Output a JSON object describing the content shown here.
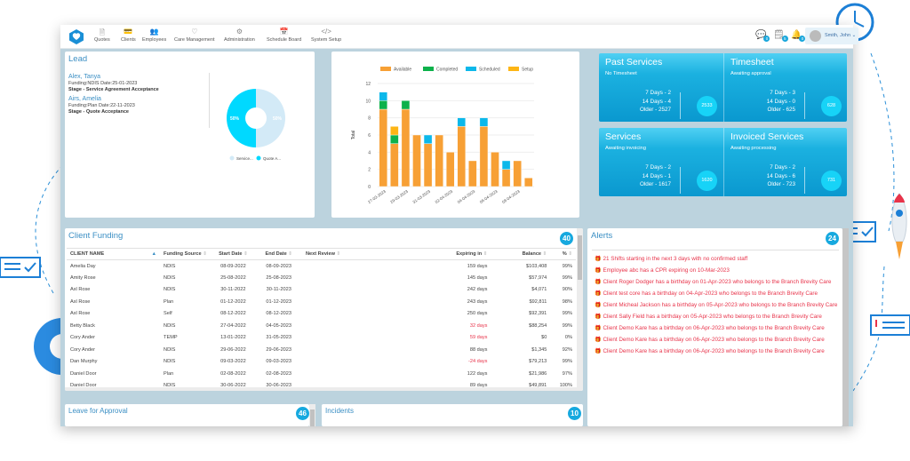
{
  "nav": {
    "items": [
      {
        "label": "Quotes",
        "icon": "file-icon"
      },
      {
        "label": "Clients",
        "icon": "id-card-icon"
      },
      {
        "label": "Employees",
        "icon": "people-icon"
      },
      {
        "label": "Care Management",
        "icon": "heart-icon"
      },
      {
        "label": "Administration",
        "icon": "cogs-icon"
      },
      {
        "label": "Schedule Board",
        "icon": "calendar-icon"
      },
      {
        "label": "System Setup",
        "icon": "code-icon"
      }
    ],
    "badges": [
      "0",
      "5",
      "0"
    ],
    "user": "Smith, John"
  },
  "lead": {
    "title": "Lead",
    "entries": [
      {
        "name": "Alex, Tanya",
        "sub": "Funding:NDIS Date:25-01-2023",
        "stage": "Stage - Service Agreement Acceptance"
      },
      {
        "name": "Airs, Amelia",
        "sub": "Funding:Plan Date:22-11-2023",
        "stage": "Stage - Quote Acceptance"
      }
    ],
    "pie": {
      "slices": [
        {
          "label": "Service...",
          "value": 50,
          "text": "50%",
          "color": "#d3eaf7"
        },
        {
          "label": "Quote A...",
          "value": 50,
          "text": "50%",
          "color": "#00d9ff"
        }
      ]
    }
  },
  "chart_data": {
    "type": "bar",
    "stacked": true,
    "ylabel": "Total",
    "ylim": [
      0,
      12
    ],
    "yticks": [
      0,
      2,
      4,
      6,
      8,
      10,
      12
    ],
    "categories": [
      "27-03-2023",
      "28-03-2023",
      "29-03-2023",
      "30-03-2023",
      "31-03-2023",
      "01-04-2023",
      "02-04-2023",
      "03-04-2023",
      "04-04-2023",
      "05-04-2023",
      "06-04-2023",
      "07-04-2023",
      "08-04-2023",
      "09-04-2023"
    ],
    "xtick_labels": [
      "27-03-2023",
      "29-03-2023",
      "31-03-2023",
      "02-04-2023",
      "04-04-2023",
      "06-04-2023",
      "08-04-2023"
    ],
    "legend": "top",
    "series": [
      {
        "name": "Available",
        "color": "#f7a035",
        "values": [
          9,
          5,
          9,
          6,
          5,
          6,
          4,
          7,
          3,
          7,
          4,
          2,
          3,
          1
        ]
      },
      {
        "name": "Completed",
        "color": "#0db14b",
        "values": [
          1,
          1,
          1,
          0,
          0,
          0,
          0,
          0,
          0,
          0,
          0,
          0,
          0,
          0
        ]
      },
      {
        "name": "Scheduled",
        "color": "#0cb8ea",
        "values": [
          1,
          0,
          0,
          0,
          1,
          0,
          0,
          1,
          0,
          1,
          0,
          1,
          0,
          0
        ]
      },
      {
        "name": "Setup",
        "color": "#fdb515",
        "values": [
          0,
          1,
          0,
          0,
          0,
          0,
          0,
          0,
          0,
          0,
          0,
          0,
          0,
          0
        ]
      }
    ]
  },
  "tiles": [
    {
      "title": "Past Services",
      "sub": "No Timesheet",
      "lines": [
        "7 Days - 2",
        "14 Days - 4",
        "Older - 2527"
      ],
      "total": "2533"
    },
    {
      "title": "Timesheet",
      "sub": "Awaiting approval",
      "lines": [
        "7 Days - 3",
        "14 Days - 0",
        "Older - 625"
      ],
      "total": "628"
    },
    {
      "title": "Services",
      "sub": "Awaiting invoicing",
      "lines": [
        "7 Days - 2",
        "14 Days - 1",
        "Older - 1617"
      ],
      "total": "1620"
    },
    {
      "title": "Invoiced Services",
      "sub": "Awaiting processing",
      "lines": [
        "7 Days - 2",
        "14 Days - 6",
        "Older - 723"
      ],
      "total": "731"
    }
  ],
  "funding": {
    "title": "Client Funding",
    "count": "40",
    "columns": [
      "CLIENT NAME",
      "Funding Source",
      "Start Date",
      "End Date",
      "Next Review",
      "Expiring in",
      "Balance",
      "%"
    ],
    "rows": [
      [
        "Amelia Day",
        "NDIS",
        "08-09-2022",
        "08-09-2023",
        "",
        "159 days",
        "$103,408",
        "99%"
      ],
      [
        "Amity Rose",
        "NDIS",
        "25-08-2022",
        "25-08-2023",
        "",
        "145 days",
        "$57,974",
        "99%"
      ],
      [
        "Axl Rose",
        "NDIS",
        "30-11-2022",
        "30-11-2023",
        "",
        "242 days",
        "$4,071",
        "90%"
      ],
      [
        "Axl Rose",
        "Plan",
        "01-12-2022",
        "01-12-2023",
        "",
        "243 days",
        "$92,811",
        "98%"
      ],
      [
        "Axl Rose",
        "Self",
        "08-12-2022",
        "08-12-2023",
        "",
        "250 days",
        "$92,391",
        "99%"
      ],
      [
        "Betty Black",
        "NDIS",
        "27-04-2022",
        "04-05-2023",
        "",
        "32 days",
        "$88,254",
        "99%"
      ],
      [
        "Cory Ander",
        "TEMP",
        "13-01-2022",
        "31-05-2023",
        "",
        "59 days",
        "$0",
        "0%"
      ],
      [
        "Cory Ander",
        "NDIS",
        "29-06-2022",
        "29-06-2023",
        "",
        "88 days",
        "$1,345",
        "92%"
      ],
      [
        "Dan Murphy",
        "NDIS",
        "09-03-2022",
        "09-03-2023",
        "",
        "-24 days",
        "$79,213",
        "99%"
      ],
      [
        "Daniel Door",
        "Plan",
        "02-08-2022",
        "02-08-2023",
        "",
        "122 days",
        "$21,986",
        "97%"
      ],
      [
        "Daniel Door",
        "NDIS",
        "30-06-2022",
        "30-06-2023",
        "",
        "89 days",
        "$49,891",
        "100%"
      ]
    ],
    "red_rows": [
      5,
      6,
      8
    ]
  },
  "alerts": {
    "title": "Alerts",
    "count": "24",
    "items": [
      "21 Shifts starting in the next 3 days with no confirmed staff",
      "Employee abc has a CPR expiring on 10-Mar-2023",
      "Client Roger Dodger has a birthday on 01-Apr-2023 who belongs to the Branch Brevity Care",
      "Client test core has a birthday on 04-Apr-2023 who belongs to the Branch Brevity Care",
      "Client Micheal Jackson has a birthday on 05-Apr-2023 who belongs to the Branch Brevity Care",
      "Client Sally Field has a birthday on 05-Apr-2023 who belongs to the Branch Brevity Care",
      "Client Demo Kare has a birthday on 06-Apr-2023 who belongs to the Branch Brevity Care",
      "Client Demo Kare has a birthday on 06-Apr-2023 who belongs to the Branch Brevity Care",
      "Client Demo Kare has a birthday on 06-Apr-2023 who belongs to the Branch Brevity Care"
    ]
  },
  "leave": {
    "title": "Leave for Approval",
    "count": "46"
  },
  "incidents": {
    "title": "Incidents",
    "count": "10"
  }
}
